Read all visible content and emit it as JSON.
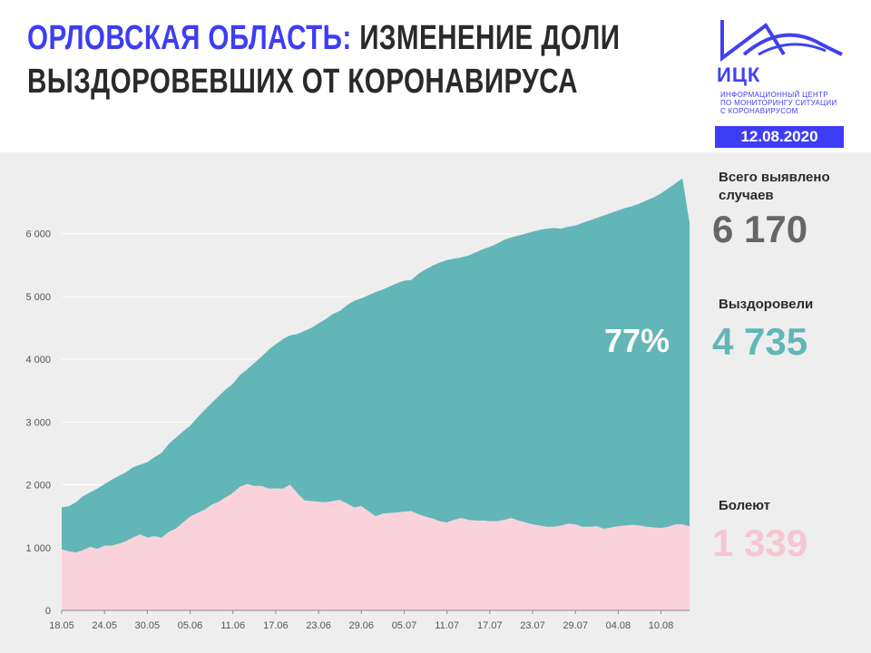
{
  "header": {
    "title_highlight": "ОРЛОВСКАЯ ОБЛАСТЬ:",
    "title_rest_line1": "ИЗМЕНЕНИЕ ДОЛИ",
    "title_line2": "ВЫЗДОРОВЕВШИХ ОТ КОРОНАВИРУСА",
    "logo_name": "ИЦК",
    "logo_subtitle_1": "ИНФОРМАЦИОННЫЙ ЦЕНТР",
    "logo_subtitle_2": "ПО МОНИТОРИНГУ СИТУАЦИИ",
    "logo_subtitle_3": "С КОРОНАВИРУСОМ",
    "date": "12.08.2020"
  },
  "stats": {
    "total_label": "Всего выявлено случаев",
    "total_value": "6 170",
    "recovered_label": "Выздоровели",
    "recovered_value": "4 735",
    "sick_label": "Болеют",
    "sick_value": "1 339"
  },
  "colors": {
    "accent": "#3d3df5",
    "recovered": "#62b6b7",
    "sick": "#f9d2dc",
    "total_value": "#666666",
    "recovered_value": "#62b6b7",
    "sick_value": "#f6c6d2"
  },
  "chart_data": {
    "type": "area",
    "annotation": "77%",
    "y_ticks": [
      "0",
      "1 000",
      "2 000",
      "3 000",
      "4 000",
      "5 000",
      "6 000"
    ],
    "ylim": [
      0,
      6500
    ],
    "x_tick_labels": [
      "18.05",
      "24.05",
      "30.05",
      "05.06",
      "11.06",
      "17.06",
      "23.06",
      "29.06",
      "05.07",
      "11.07",
      "17.07",
      "23.07",
      "29.07",
      "04.08",
      "10.08"
    ],
    "series": [
      {
        "name": "Болеют",
        "values": [
          970,
          940,
          920,
          960,
          1010,
          980,
          1030,
          1030,
          1060,
          1100,
          1160,
          1210,
          1160,
          1180,
          1160,
          1250,
          1300,
          1400,
          1490,
          1550,
          1600,
          1680,
          1730,
          1800,
          1870,
          1970,
          2010,
          1980,
          1980,
          1940,
          1940,
          1940,
          2000,
          1870,
          1750,
          1740,
          1730,
          1720,
          1740,
          1760,
          1700,
          1640,
          1660,
          1580,
          1500,
          1540,
          1550,
          1560,
          1570,
          1580,
          1530,
          1490,
          1460,
          1420,
          1400,
          1440,
          1470,
          1440,
          1430,
          1430,
          1420,
          1420,
          1440,
          1470,
          1430,
          1400,
          1370,
          1350,
          1330,
          1330,
          1350,
          1380,
          1370,
          1330,
          1330,
          1340,
          1300,
          1320,
          1340,
          1350,
          1360,
          1350,
          1330,
          1320,
          1310,
          1330,
          1370,
          1370,
          1339
        ]
      },
      {
        "name": "Выздоровели",
        "values": [
          670,
          720,
          800,
          860,
          870,
          960,
          980,
          1050,
          1080,
          1100,
          1120,
          1110,
          1200,
          1260,
          1350,
          1400,
          1450,
          1450,
          1450,
          1520,
          1590,
          1620,
          1680,
          1720,
          1740,
          1780,
          1830,
          1960,
          2060,
          2210,
          2300,
          2380,
          2380,
          2530,
          2700,
          2760,
          2840,
          2920,
          2980,
          3010,
          3160,
          3290,
          3310,
          3440,
          3570,
          3570,
          3610,
          3650,
          3680,
          3680,
          3830,
          3940,
          4030,
          4120,
          4180,
          4160,
          4150,
          4210,
          4270,
          4320,
          4370,
          4420,
          4460,
          4470,
          4540,
          4600,
          4660,
          4710,
          4750,
          4760,
          4730,
          4730,
          4760,
          4840,
          4880,
          4910,
          4990,
          5010,
          5030,
          5060,
          5080,
          5130,
          5200,
          5260,
          5330,
          5390,
          5430,
          5510,
          4735
        ]
      }
    ],
    "total_series_end": 6170
  }
}
